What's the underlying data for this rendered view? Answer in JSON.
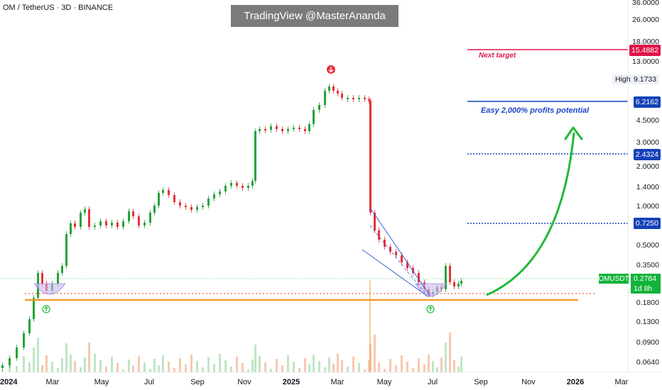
{
  "symbol": {
    "title": "OM / TetherUS · 3D · BINANCE"
  },
  "watermark": {
    "text": "TradingView @MasterAnanda"
  },
  "price_axis": {
    "ticks": [
      "36.0000",
      "26.0000",
      "18.0000",
      "13.0000",
      "6.2162",
      "4.5000",
      "3.0000",
      "2.0000",
      "1.4000",
      "1.0000",
      "0.5000",
      "0.3500",
      "0.1800",
      "0.1300",
      "0.0900",
      "0.0640"
    ]
  },
  "time_axis": {
    "labels": [
      "2024",
      "Mar",
      "May",
      "Jul",
      "Sep",
      "Nov",
      "2025",
      "Mar",
      "May",
      "Jul",
      "Sep",
      "Nov",
      "2026",
      "Mar"
    ]
  },
  "levels": {
    "next_target": {
      "price": "15.4882",
      "label": "Next target",
      "color": "#e0144a"
    },
    "high": {
      "tag": "High",
      "price": "9.1733"
    },
    "target_2": {
      "price": "6.2162",
      "label": "Easy 2,000% profits potential",
      "color": "#1442b8"
    },
    "target_3": {
      "price": "2.4324",
      "color": "#1442b8"
    },
    "target_4": {
      "price": "0.7250",
      "color": "#1442b8"
    }
  },
  "current": {
    "symbol": "OMUSDT",
    "price": "0.2784",
    "countdown": "1d 8h",
    "color": "#12b33a"
  },
  "colors": {
    "up": "#26a33a",
    "down": "#e8303a",
    "support": "#f29a2e",
    "arrow": "#22b83a"
  },
  "icons": [
    "down-arrow-marker-icon",
    "up-arrow-marker-icon"
  ]
}
